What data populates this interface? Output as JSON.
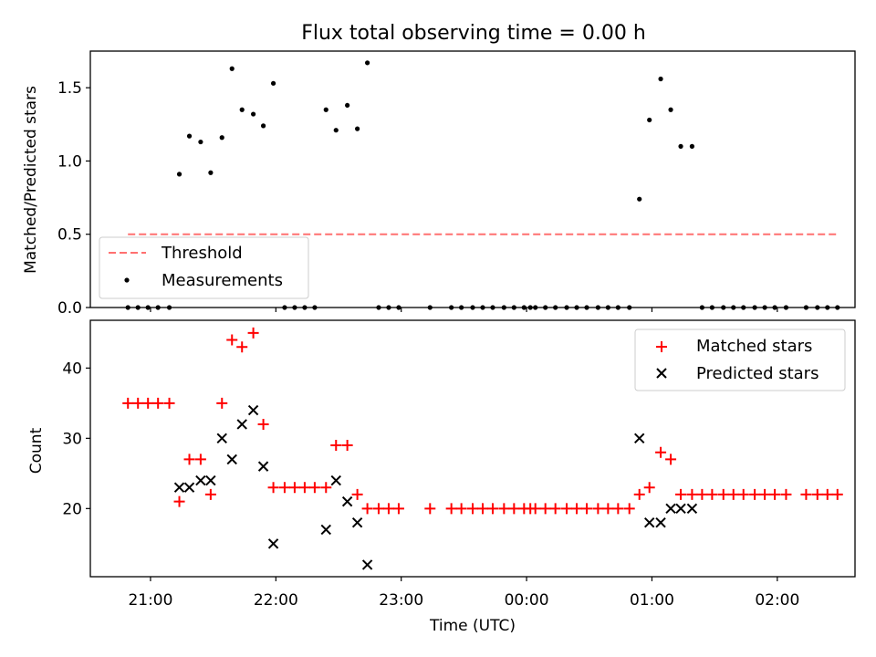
{
  "chart_data": [
    {
      "type": "scatter",
      "title": "Flux total observing time = 0.00 h",
      "ylabel": "Matched/Predicted stars",
      "xlim": [
        20.52,
        26.62
      ],
      "ylim": [
        0,
        1.75
      ],
      "yticks": [
        0.0,
        0.5,
        1.0,
        1.5
      ],
      "ytick_labels": [
        "0.0",
        "0.5",
        "1.0",
        "1.5"
      ],
      "legend_position": "lower-left",
      "threshold": {
        "name": "Threshold",
        "value": 0.5,
        "x_range": [
          20.82,
          26.48
        ],
        "color": "#ff7070"
      },
      "series": [
        {
          "name": "Measurements",
          "color": "#000000",
          "x": [
            20.82,
            20.9,
            20.98,
            21.06,
            21.15,
            21.23,
            21.31,
            21.4,
            21.48,
            21.57,
            21.65,
            21.73,
            21.82,
            21.9,
            21.98,
            22.07,
            22.15,
            22.23,
            22.31,
            22.4,
            22.48,
            22.57,
            22.65,
            22.73,
            22.82,
            22.9,
            22.98,
            23.23,
            23.4,
            23.48,
            23.57,
            23.65,
            23.73,
            23.82,
            23.9,
            23.98,
            24.03,
            24.07,
            24.15,
            24.23,
            24.32,
            24.4,
            24.48,
            24.57,
            24.65,
            24.73,
            24.82,
            24.9,
            24.98,
            25.07,
            25.15,
            25.23,
            25.32,
            25.4,
            25.48,
            25.57,
            25.65,
            25.73,
            25.82,
            25.9,
            25.98,
            26.07,
            26.23,
            26.32,
            26.4,
            26.48
          ],
          "y": [
            0,
            0,
            0,
            0,
            0,
            0.91,
            1.17,
            1.13,
            0.92,
            1.16,
            1.63,
            1.35,
            1.32,
            1.24,
            1.53,
            0,
            0,
            0,
            0,
            1.35,
            1.21,
            1.38,
            1.22,
            1.67,
            0,
            0,
            0,
            0,
            0,
            0,
            0,
            0,
            0,
            0,
            0,
            0,
            0,
            0,
            0,
            0,
            0,
            0,
            0,
            0,
            0,
            0,
            0,
            0.74,
            1.28,
            1.56,
            1.35,
            1.1,
            1.1,
            0,
            0,
            0,
            0,
            0,
            0,
            0,
            0,
            0,
            0,
            0,
            0,
            0
          ]
        }
      ]
    },
    {
      "type": "scatter",
      "xlabel": "Time (UTC)",
      "ylabel": "Count",
      "xlim": [
        20.52,
        26.62
      ],
      "ylim": [
        10.3,
        46.8
      ],
      "yticks": [
        20,
        30,
        40
      ],
      "ytick_labels": [
        "20",
        "30",
        "40"
      ],
      "xticks": [
        21,
        22,
        23,
        24,
        25,
        26
      ],
      "xtick_labels": [
        "21:00",
        "22:00",
        "23:00",
        "00:00",
        "01:00",
        "02:00"
      ],
      "legend_position": "upper-right",
      "series": [
        {
          "name": "Matched stars",
          "marker": "plus",
          "color": "#ff0000",
          "x": [
            20.82,
            20.9,
            20.98,
            21.06,
            21.15,
            21.23,
            21.31,
            21.4,
            21.48,
            21.57,
            21.65,
            21.73,
            21.82,
            21.9,
            21.98,
            22.07,
            22.15,
            22.23,
            22.31,
            22.4,
            22.48,
            22.57,
            22.65,
            22.73,
            22.82,
            22.9,
            22.98,
            23.23,
            23.4,
            23.48,
            23.57,
            23.65,
            23.73,
            23.82,
            23.9,
            23.98,
            24.03,
            24.07,
            24.15,
            24.23,
            24.32,
            24.4,
            24.48,
            24.57,
            24.65,
            24.73,
            24.82,
            24.9,
            24.98,
            25.07,
            25.15,
            25.23,
            25.32,
            25.4,
            25.48,
            25.57,
            25.65,
            25.73,
            25.82,
            25.9,
            25.98,
            26.07,
            26.23,
            26.32,
            26.4,
            26.48
          ],
          "y": [
            35,
            35,
            35,
            35,
            35,
            21,
            27,
            27,
            22,
            35,
            44,
            43,
            45,
            32,
            23,
            23,
            23,
            23,
            23,
            23,
            29,
            29,
            22,
            20,
            20,
            20,
            20,
            20,
            20,
            20,
            20,
            20,
            20,
            20,
            20,
            20,
            20,
            20,
            20,
            20,
            20,
            20,
            20,
            20,
            20,
            20,
            20,
            22,
            23,
            28,
            27,
            22,
            22,
            22,
            22,
            22,
            22,
            22,
            22,
            22,
            22,
            22,
            22,
            22,
            22,
            22
          ]
        },
        {
          "name": "Predicted stars",
          "marker": "x",
          "color": "#000000",
          "x": [
            21.23,
            21.31,
            21.4,
            21.48,
            21.57,
            21.65,
            21.73,
            21.82,
            21.9,
            21.98,
            22.4,
            22.48,
            22.57,
            22.65,
            22.73,
            24.9,
            24.98,
            25.07,
            25.15,
            25.23,
            25.32
          ],
          "y": [
            23,
            23,
            24,
            24,
            30,
            27,
            32,
            34,
            26,
            15,
            17,
            24,
            21,
            18,
            12,
            30,
            18,
            18,
            20,
            20,
            20
          ]
        }
      ]
    }
  ]
}
